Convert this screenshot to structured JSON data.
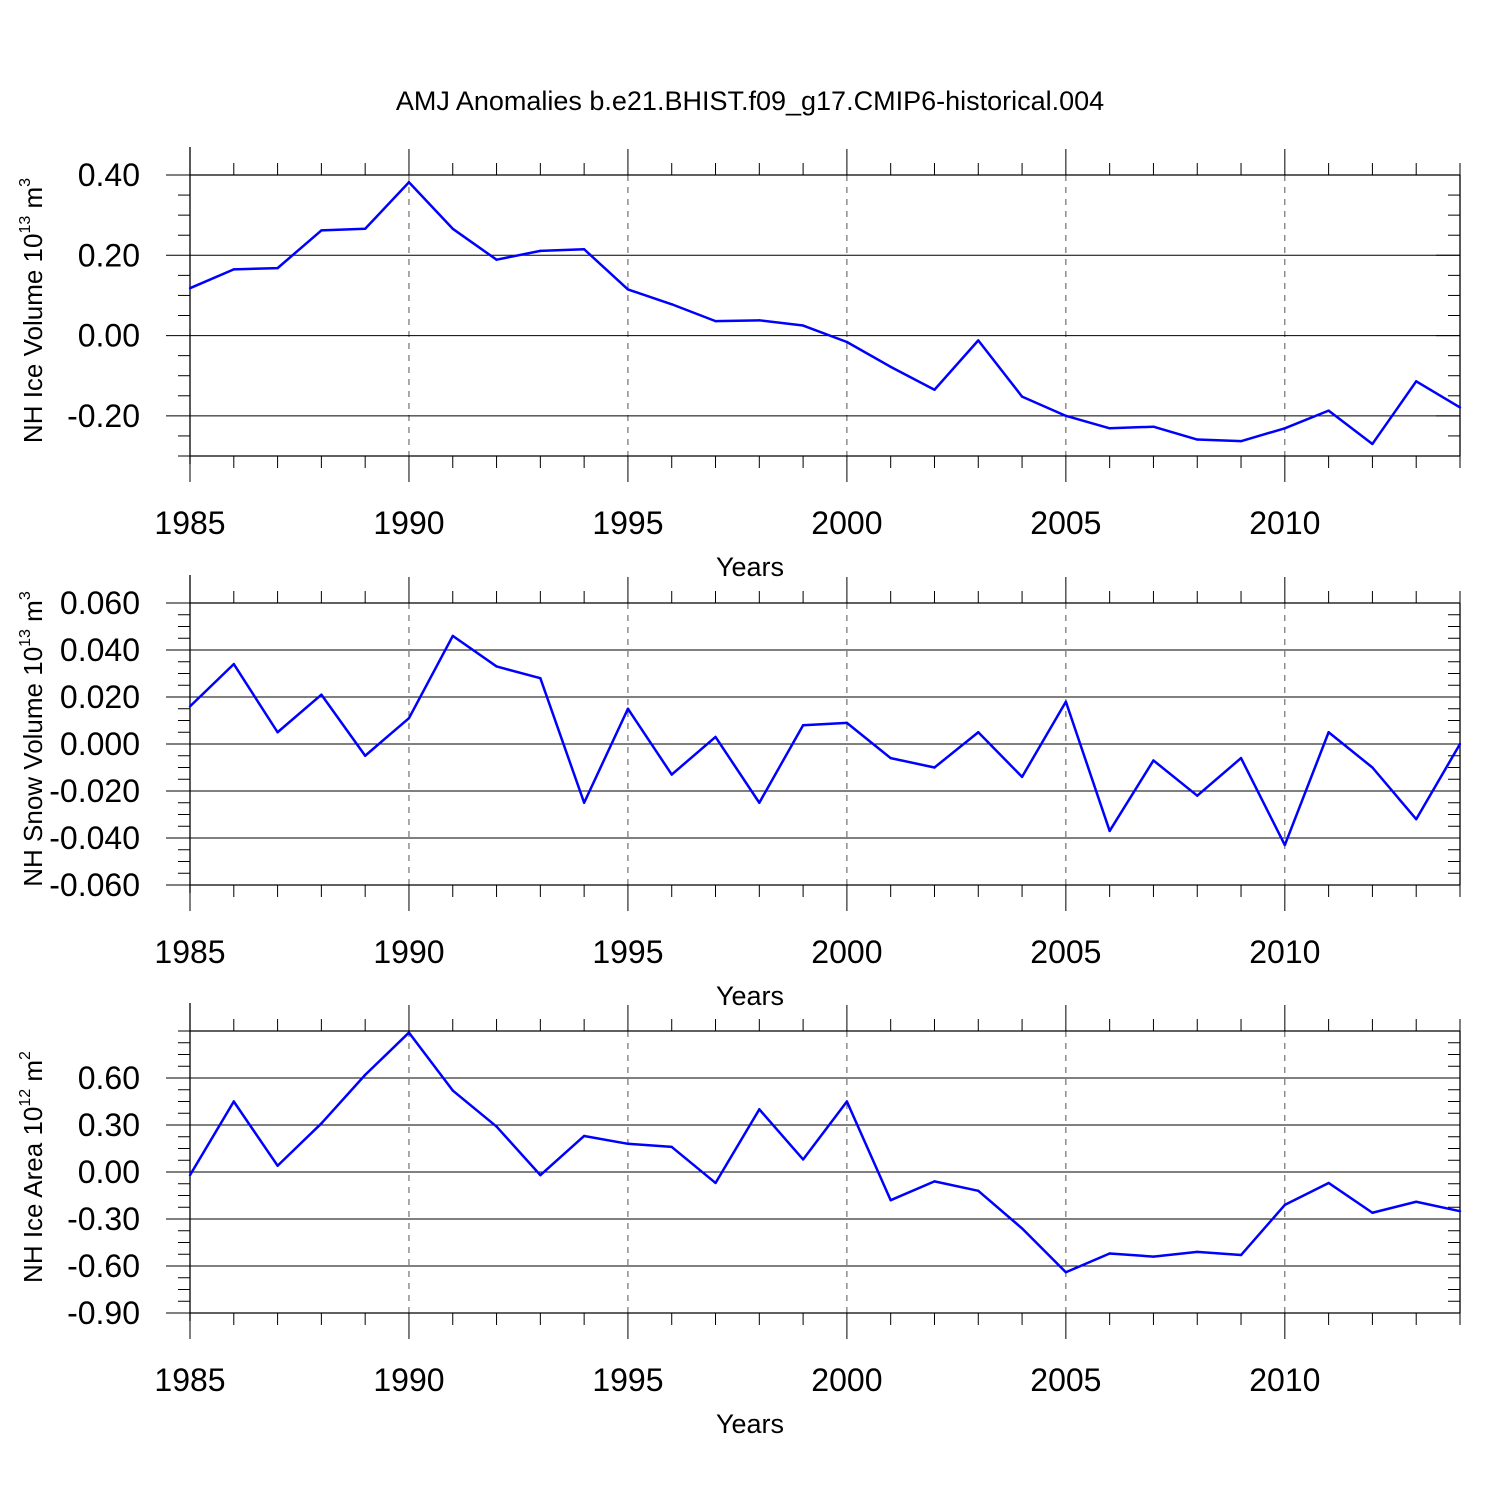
{
  "title": "AMJ Anomalies b.e21.BHIST.f09_g17.CMIP6-historical.004",
  "colors": {
    "line": "#0000ff",
    "axis": "#000000",
    "grid": "#555555"
  },
  "chart_data": [
    {
      "type": "line",
      "ylabel": {
        "text": "NH Ice Volume 10",
        "exp": "13",
        "unit_text": " m",
        "unit_exp": "3"
      },
      "xlabel": "Years",
      "xlim": [
        1985,
        2014
      ],
      "ylim": [
        -0.3,
        0.4
      ],
      "xticks": [
        "1985",
        "1990",
        "1995",
        "2000",
        "2005",
        "2010"
      ],
      "yticks": [
        "0.40",
        "0.20",
        "0.00",
        "-0.20"
      ],
      "x": [
        1985,
        1986,
        1987,
        1988,
        1989,
        1990,
        1991,
        1992,
        1993,
        1994,
        1995,
        1996,
        1997,
        1998,
        1999,
        2000,
        2001,
        2002,
        2003,
        2004,
        2005,
        2006,
        2007,
        2008,
        2009,
        2010,
        2011,
        2012,
        2013,
        2014
      ],
      "values": [
        0.118,
        0.165,
        0.168,
        0.262,
        0.266,
        0.382,
        0.266,
        0.189,
        0.211,
        0.215,
        0.115,
        0.078,
        0.036,
        0.038,
        0.025,
        -0.016,
        -0.078,
        -0.135,
        -0.012,
        -0.152,
        -0.2,
        -0.231,
        -0.227,
        -0.259,
        -0.263,
        -0.231,
        -0.187,
        -0.27,
        -0.114,
        -0.179
      ]
    },
    {
      "type": "line",
      "ylabel": {
        "text": "NH Snow Volume 10",
        "exp": "13",
        "unit_text": " m",
        "unit_exp": "3"
      },
      "xlabel": "Years",
      "xlim": [
        1985,
        2014
      ],
      "ylim": [
        -0.06,
        0.06
      ],
      "xticks": [
        "1985",
        "1990",
        "1995",
        "2000",
        "2005",
        "2010"
      ],
      "yticks": [
        "0.060",
        "0.040",
        "0.020",
        "0.000",
        "-0.020",
        "-0.040",
        "-0.060"
      ],
      "x": [
        1985,
        1986,
        1987,
        1988,
        1989,
        1990,
        1991,
        1992,
        1993,
        1994,
        1995,
        1996,
        1997,
        1998,
        1999,
        2000,
        2001,
        2002,
        2003,
        2004,
        2005,
        2006,
        2007,
        2008,
        2009,
        2010,
        2011,
        2012,
        2013,
        2014
      ],
      "values": [
        0.016,
        0.034,
        0.005,
        0.021,
        -0.005,
        0.011,
        0.046,
        0.033,
        0.028,
        -0.025,
        0.015,
        -0.013,
        0.003,
        -0.025,
        0.008,
        0.009,
        -0.006,
        -0.01,
        0.005,
        -0.014,
        0.018,
        -0.037,
        -0.007,
        -0.022,
        -0.006,
        -0.043,
        0.005,
        -0.01,
        -0.032,
        0.0
      ]
    },
    {
      "type": "line",
      "ylabel": {
        "text": "NH Ice Area 10",
        "exp": "12",
        "unit_text": " m",
        "unit_exp": "2"
      },
      "xlabel": "Years",
      "xlim": [
        1985,
        2014
      ],
      "ylim": [
        -0.9,
        0.9
      ],
      "xticks": [
        "1985",
        "1990",
        "1995",
        "2000",
        "2005",
        "2010"
      ],
      "yticks": [
        "0.60",
        "0.30",
        "0.00",
        "-0.30",
        "-0.60",
        "-0.90"
      ],
      "x": [
        1985,
        1986,
        1987,
        1988,
        1989,
        1990,
        1991,
        1992,
        1993,
        1994,
        1995,
        1996,
        1997,
        1998,
        1999,
        2000,
        2001,
        2002,
        2003,
        2004,
        2005,
        2006,
        2007,
        2008,
        2009,
        2010,
        2011,
        2012,
        2013,
        2014
      ],
      "values": [
        -0.02,
        0.45,
        0.04,
        0.31,
        0.62,
        0.89,
        0.52,
        0.29,
        -0.02,
        0.23,
        0.18,
        0.16,
        -0.07,
        0.4,
        0.08,
        0.45,
        -0.18,
        -0.06,
        -0.12,
        -0.36,
        -0.64,
        -0.52,
        -0.54,
        -0.51,
        -0.53,
        -0.21,
        -0.07,
        -0.26,
        -0.19,
        -0.25
      ]
    }
  ]
}
